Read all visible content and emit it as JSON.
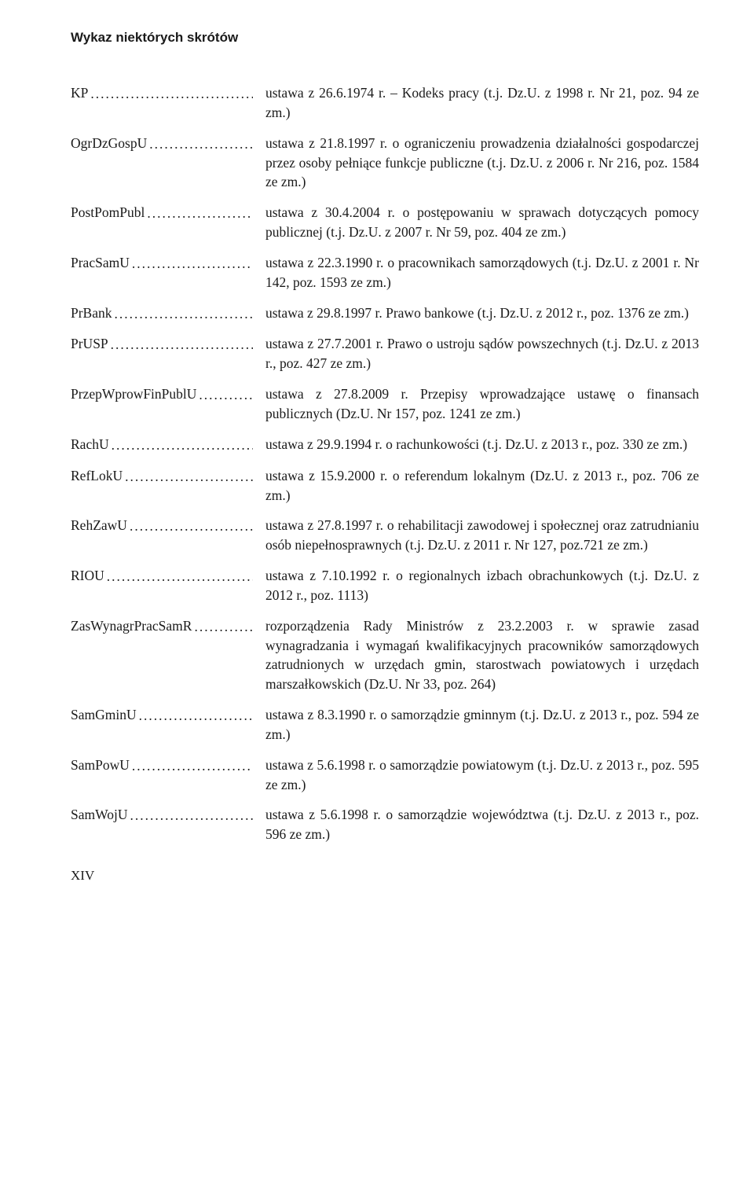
{
  "header": "Wykaz niektórych skrótów",
  "page_number": "XIV",
  "entries": [
    {
      "abbr": "KP",
      "desc": "ustawa z 26.6.1974 r. – Kodeks pracy (t.j. Dz.U. z 1998 r. Nr 21, poz. 94 ze zm.)"
    },
    {
      "abbr": "OgrDzGospU",
      "desc": "ustawa z 21.8.1997 r. o ograniczeniu prowadzenia działalności gospodarczej przez osoby pełniące funkcje publiczne (t.j. Dz.U. z 2006 r. Nr 216, poz. 1584 ze zm.)"
    },
    {
      "abbr": "PostPomPubl",
      "desc": "ustawa z 30.4.2004 r. o postępowaniu w sprawach dotyczących pomocy publicznej (t.j. Dz.U. z 2007 r. Nr 59, poz. 404 ze zm.)"
    },
    {
      "abbr": "PracSamU",
      "desc": "ustawa z 22.3.1990 r. o pracownikach samorządowych (t.j. Dz.U. z 2001 r. Nr 142, poz. 1593 ze zm.)"
    },
    {
      "abbr": "PrBank",
      "desc": "ustawa z 29.8.1997 r. Prawo bankowe (t.j. Dz.U. z 2012 r., poz. 1376 ze zm.)"
    },
    {
      "abbr": "PrUSP",
      "desc": "ustawa z 27.7.2001 r. Prawo o ustroju sądów powszechnych (t.j. Dz.U. z 2013 r., poz. 427 ze zm.)"
    },
    {
      "abbr": "PrzepWprowFinPublU",
      "desc": "ustawa z 27.8.2009 r. Przepisy wprowadzające ustawę o finansach publicznych (Dz.U. Nr 157, poz. 1241 ze zm.)"
    },
    {
      "abbr": "RachU",
      "desc": "ustawa z 29.9.1994 r. o rachunkowości (t.j. Dz.U. z 2013 r., poz. 330 ze zm.)"
    },
    {
      "abbr": "RefLokU",
      "desc": "ustawa z 15.9.2000 r. o referendum lokalnym (Dz.U. z 2013 r., poz. 706 ze zm.)"
    },
    {
      "abbr": "RehZawU",
      "desc": "ustawa z 27.8.1997 r. o rehabilitacji zawodowej i społecznej oraz zatrudnianiu osób niepełnosprawnych (t.j. Dz.U. z 2011 r. Nr 127, poz.721 ze zm.)"
    },
    {
      "abbr": "RIOU",
      "desc": "ustawa z 7.10.1992 r. o regionalnych izbach obrachunkowych (t.j. Dz.U. z 2012 r., poz. 1113)"
    },
    {
      "abbr": "ZasWynagrPracSamR",
      "desc": "rozporządzenia Rady Ministrów z 23.2.2003 r. w sprawie zasad wynagradzania i wymagań kwalifikacyjnych pracowników samorządowych zatrudnionych w urzędach gmin, starostwach powiatowych i urzędach marszałkowskich (Dz.U. Nr 33, poz. 264)"
    },
    {
      "abbr": "SamGminU",
      "desc": "ustawa z 8.3.1990 r. o samorządzie gminnym (t.j. Dz.U. z 2013 r., poz. 594 ze zm.)"
    },
    {
      "abbr": "SamPowU",
      "desc": "ustawa z 5.6.1998 r. o samorządzie powiatowym (t.j. Dz.U. z 2013 r., poz. 595 ze zm.)"
    },
    {
      "abbr": "SamWojU",
      "desc": "ustawa z 5.6.1998 r. o samorządzie województwa (t.j. Dz.U. z 2013 r., poz. 596 ze zm.)"
    }
  ]
}
